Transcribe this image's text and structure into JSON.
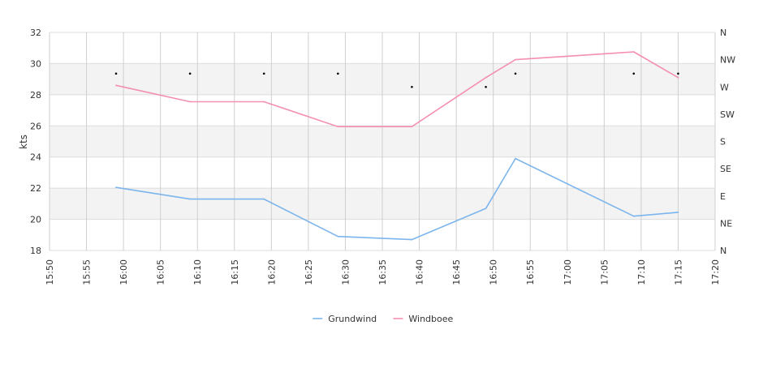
{
  "chart_data": {
    "type": "line",
    "x_unit": "time",
    "x_ticks": [
      "15:50",
      "15:55",
      "16:00",
      "16:05",
      "16:10",
      "16:15",
      "16:20",
      "16:25",
      "16:30",
      "16:35",
      "16:40",
      "16:45",
      "16:50",
      "16:55",
      "17:00",
      "17:05",
      "17:10",
      "17:15",
      "17:20"
    ],
    "xlim": [
      "15:50",
      "17:20"
    ],
    "ylabel": "kts",
    "ylim": [
      18,
      32
    ],
    "y_ticks": [
      18,
      20,
      22,
      24,
      26,
      28,
      30,
      32
    ],
    "y2_ticks": [
      "N",
      "NE",
      "E",
      "SE",
      "S",
      "SW",
      "W",
      "NW",
      "N"
    ],
    "y2_range_degrees": [
      0,
      360
    ],
    "grid": true,
    "legend_position": "bottom-center",
    "series": [
      {
        "name": "Grundwind",
        "color": "#7cb5ec",
        "points": [
          {
            "x": "15:59",
            "y": 22.05
          },
          {
            "x": "16:09",
            "y": 21.3
          },
          {
            "x": "16:19",
            "y": 21.3
          },
          {
            "x": "16:29",
            "y": 18.9
          },
          {
            "x": "16:39",
            "y": 18.7
          },
          {
            "x": "16:49",
            "y": 20.7
          },
          {
            "x": "16:53",
            "y": 23.9
          },
          {
            "x": "17:09",
            "y": 20.2
          },
          {
            "x": "17:15",
            "y": 20.45
          }
        ]
      },
      {
        "name": "Windboee",
        "color": "#f48fb1",
        "points": [
          {
            "x": "15:59",
            "y": 28.6
          },
          {
            "x": "16:09",
            "y": 27.55
          },
          {
            "x": "16:19",
            "y": 27.55
          },
          {
            "x": "16:29",
            "y": 25.95
          },
          {
            "x": "16:39",
            "y": 25.95
          },
          {
            "x": "16:49",
            "y": 29.1
          },
          {
            "x": "16:53",
            "y": 30.25
          },
          {
            "x": "17:09",
            "y": 30.75
          },
          {
            "x": "17:15",
            "y": 29.1
          }
        ]
      }
    ],
    "direction_points": [
      {
        "x": "15:59",
        "deg": 292
      },
      {
        "x": "16:09",
        "deg": 292
      },
      {
        "x": "16:19",
        "deg": 292
      },
      {
        "x": "16:29",
        "deg": 292
      },
      {
        "x": "16:39",
        "deg": 270
      },
      {
        "x": "16:49",
        "deg": 270
      },
      {
        "x": "16:53",
        "deg": 292
      },
      {
        "x": "17:09",
        "deg": 292
      },
      {
        "x": "17:15",
        "deg": 292
      }
    ]
  }
}
